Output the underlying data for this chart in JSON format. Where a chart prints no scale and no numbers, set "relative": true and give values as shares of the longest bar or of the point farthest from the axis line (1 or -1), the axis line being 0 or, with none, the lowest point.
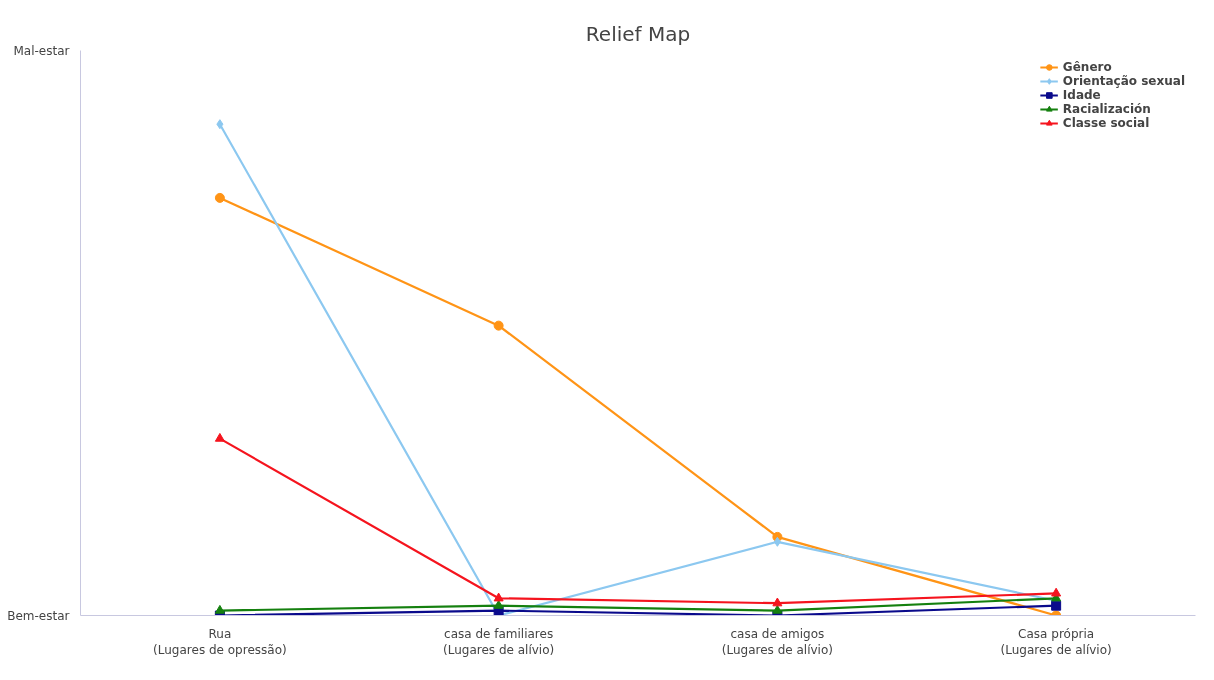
{
  "chart_data": {
    "type": "line",
    "title": "Relief Map",
    "categories": [
      "Rua\n(Lugares de opressão)",
      "casa de familiares\n(Lugares de alívio)",
      "casa de amigos\n(Lugares de alívio)",
      "Casa própria\n(Lugares de alívio)"
    ],
    "relative": true,
    "annotations": [
      "Mal-estar",
      "Bem-estar"
    ],
    "grid": false,
    "legend": "top right",
    "line_style": "solid",
    "series": [
      {
        "name": "Gênero",
        "color": "#ff9416",
        "marker": "circle",
        "values": [
          0.85,
          0.59,
          0.16,
          0.0
        ]
      },
      {
        "name": "Orientação sexual",
        "color": "#8cc8f0",
        "marker": "diamond",
        "values": [
          1.0,
          0.0,
          0.15,
          0.03
        ]
      },
      {
        "name": "Idade",
        "color": "#0a0a8c",
        "marker": "square",
        "values": [
          0.0,
          0.01,
          0.0,
          0.02
        ]
      },
      {
        "name": "Racialización",
        "color": "#15800f",
        "marker": "triangle",
        "values": [
          0.01,
          0.02,
          0.01,
          0.035
        ]
      },
      {
        "name": "Classe social",
        "color": "#f5141e",
        "marker": "triangle",
        "values": [
          0.36,
          0.035,
          0.025,
          0.045
        ]
      }
    ]
  }
}
